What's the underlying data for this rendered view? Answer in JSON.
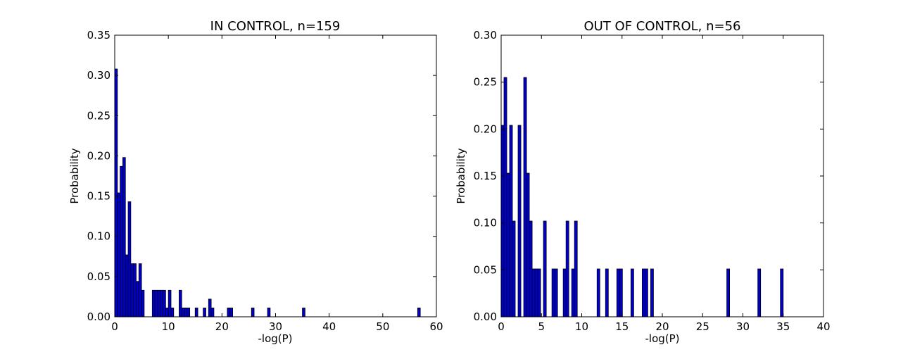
{
  "figure": {
    "background": "#ffffff",
    "bar_color": "#0000cc",
    "bar_edge_color": "#000000"
  },
  "chart_data": [
    {
      "type": "bar",
      "title": "IN CONTROL, n=159",
      "xlabel": "-log(P)",
      "ylabel": "Probability",
      "xlim": [
        0,
        60
      ],
      "ylim": [
        0,
        0.35
      ],
      "xticks": [
        0,
        10,
        20,
        30,
        40,
        50,
        60
      ],
      "yticks": [
        0.0,
        0.05,
        0.1,
        0.15,
        0.2,
        0.25,
        0.3,
        0.35
      ],
      "grid": false,
      "bin_width": 0.5,
      "bars": [
        {
          "x": 0.0,
          "value": 0.308
        },
        {
          "x": 0.5,
          "value": 0.154
        },
        {
          "x": 1.0,
          "value": 0.187
        },
        {
          "x": 1.5,
          "value": 0.198
        },
        {
          "x": 2.0,
          "value": 0.077
        },
        {
          "x": 2.5,
          "value": 0.143
        },
        {
          "x": 3.0,
          "value": 0.066
        },
        {
          "x": 3.5,
          "value": 0.066
        },
        {
          "x": 4.0,
          "value": 0.044
        },
        {
          "x": 4.5,
          "value": 0.066
        },
        {
          "x": 5.0,
          "value": 0.033
        },
        {
          "x": 7.0,
          "value": 0.033
        },
        {
          "x": 7.5,
          "value": 0.033
        },
        {
          "x": 8.0,
          "value": 0.033
        },
        {
          "x": 8.5,
          "value": 0.033
        },
        {
          "x": 9.0,
          "value": 0.033
        },
        {
          "x": 9.5,
          "value": 0.011
        },
        {
          "x": 10.0,
          "value": 0.033
        },
        {
          "x": 10.5,
          "value": 0.011
        },
        {
          "x": 12.0,
          "value": 0.033
        },
        {
          "x": 12.5,
          "value": 0.011
        },
        {
          "x": 13.0,
          "value": 0.011
        },
        {
          "x": 13.5,
          "value": 0.011
        },
        {
          "x": 15.0,
          "value": 0.011
        },
        {
          "x": 16.5,
          "value": 0.011
        },
        {
          "x": 17.5,
          "value": 0.022
        },
        {
          "x": 18.0,
          "value": 0.011
        },
        {
          "x": 21.0,
          "value": 0.011
        },
        {
          "x": 21.5,
          "value": 0.011
        },
        {
          "x": 25.5,
          "value": 0.011
        },
        {
          "x": 28.5,
          "value": 0.011
        },
        {
          "x": 35.0,
          "value": 0.011
        },
        {
          "x": 56.5,
          "value": 0.011
        }
      ]
    },
    {
      "type": "bar",
      "title": "OUT OF CONTROL, n=56",
      "xlabel": "-log(P)",
      "ylabel": "Probability",
      "xlim": [
        0,
        40
      ],
      "ylim": [
        0,
        0.3
      ],
      "xticks": [
        0,
        5,
        10,
        15,
        20,
        25,
        30,
        35,
        40
      ],
      "yticks": [
        0.0,
        0.05,
        0.1,
        0.15,
        0.2,
        0.25,
        0.3
      ],
      "grid": false,
      "bin_width": 0.35,
      "bars": [
        {
          "x": 0.0,
          "value": 0.204
        },
        {
          "x": 0.35,
          "value": 0.255
        },
        {
          "x": 0.7,
          "value": 0.153
        },
        {
          "x": 1.05,
          "value": 0.204
        },
        {
          "x": 1.4,
          "value": 0.102
        },
        {
          "x": 2.1,
          "value": 0.204
        },
        {
          "x": 2.8,
          "value": 0.255
        },
        {
          "x": 3.15,
          "value": 0.153
        },
        {
          "x": 3.5,
          "value": 0.102
        },
        {
          "x": 3.85,
          "value": 0.051
        },
        {
          "x": 4.2,
          "value": 0.051
        },
        {
          "x": 4.55,
          "value": 0.051
        },
        {
          "x": 5.25,
          "value": 0.102
        },
        {
          "x": 6.3,
          "value": 0.051
        },
        {
          "x": 6.65,
          "value": 0.051
        },
        {
          "x": 7.7,
          "value": 0.051
        },
        {
          "x": 8.05,
          "value": 0.102
        },
        {
          "x": 8.75,
          "value": 0.051
        },
        {
          "x": 9.1,
          "value": 0.102
        },
        {
          "x": 11.9,
          "value": 0.051
        },
        {
          "x": 12.95,
          "value": 0.051
        },
        {
          "x": 14.35,
          "value": 0.051
        },
        {
          "x": 14.7,
          "value": 0.051
        },
        {
          "x": 16.1,
          "value": 0.051
        },
        {
          "x": 17.5,
          "value": 0.051
        },
        {
          "x": 17.85,
          "value": 0.051
        },
        {
          "x": 18.55,
          "value": 0.051
        },
        {
          "x": 28.0,
          "value": 0.051
        },
        {
          "x": 31.85,
          "value": 0.051
        },
        {
          "x": 34.65,
          "value": 0.051
        }
      ]
    }
  ]
}
